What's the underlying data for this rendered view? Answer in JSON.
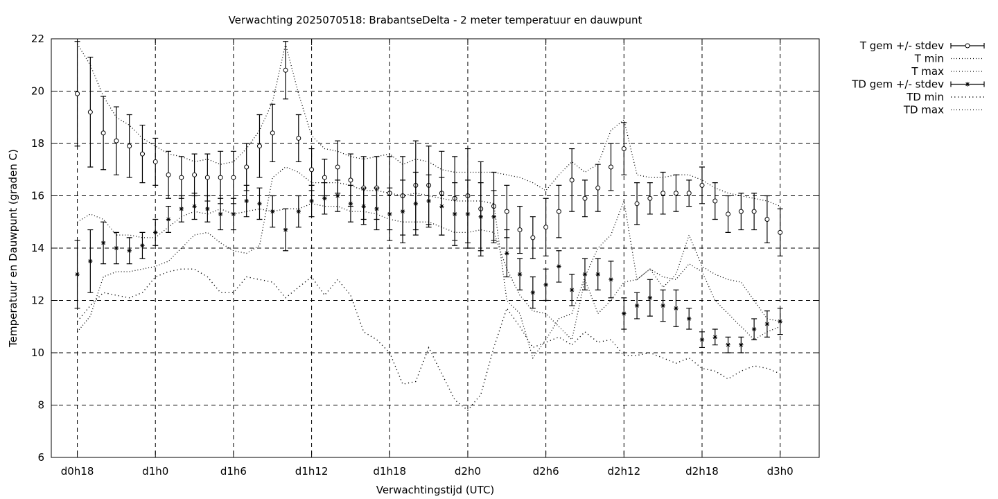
{
  "chart_data": {
    "type": "line",
    "title": "Verwachting 2025070518: BrabantseDelta - 2 meter temperatuur en dauwpunt",
    "xlabel": "Verwachtingstijd (UTC)",
    "ylabel": "Temperatuur en Dauwpunt (graden C)",
    "ylim": [
      6,
      22
    ],
    "yticks": [
      6,
      8,
      10,
      12,
      14,
      16,
      18,
      20,
      22
    ],
    "x_hours_range": [
      -2,
      57
    ],
    "xticks": [
      {
        "label": "d0h18",
        "hour": 0
      },
      {
        "label": "d1h0",
        "hour": 6
      },
      {
        "label": "d1h6",
        "hour": 12
      },
      {
        "label": "d1h12",
        "hour": 18
      },
      {
        "label": "d1h18",
        "hour": 24
      },
      {
        "label": "d2h0",
        "hour": 30
      },
      {
        "label": "d2h6",
        "hour": 36
      },
      {
        "label": "d2h12",
        "hour": 42
      },
      {
        "label": "d2h18",
        "hour": 48
      },
      {
        "label": "d3h0",
        "hour": 54
      }
    ],
    "grid": true,
    "legend_position": "outside-right",
    "x_hours": [
      0,
      1,
      2,
      3,
      4,
      5,
      6,
      7,
      8,
      9,
      10,
      11,
      12,
      13,
      14,
      15,
      16,
      17,
      18,
      19,
      20,
      21,
      22,
      23,
      24,
      25,
      26,
      27,
      28,
      29,
      30,
      31,
      32,
      33,
      34,
      35,
      36,
      37,
      38,
      39,
      40,
      41,
      42,
      43,
      44,
      45,
      46,
      47,
      48,
      49,
      50,
      51,
      52,
      53,
      54
    ],
    "series": [
      {
        "name": "T gem +/- stdev",
        "style": "errorbars-circle",
        "mean": [
          19.9,
          19.2,
          18.4,
          18.1,
          17.9,
          17.6,
          17.3,
          16.8,
          16.7,
          16.8,
          16.7,
          16.7,
          16.7,
          17.1,
          17.9,
          18.4,
          20.8,
          18.2,
          17.0,
          16.7,
          17.1,
          16.6,
          16.3,
          16.3,
          16.1,
          16.0,
          16.4,
          16.4,
          16.1,
          15.9,
          16.0,
          15.5,
          15.6,
          15.4,
          14.7,
          14.4,
          14.8,
          15.4,
          16.6,
          15.9,
          16.3,
          17.1,
          17.8,
          15.7,
          15.9,
          16.1,
          16.1,
          16.1,
          16.4,
          15.8,
          15.3,
          15.4,
          15.4,
          15.1,
          14.6
        ],
        "stdev": [
          2.0,
          2.1,
          1.4,
          1.3,
          1.2,
          1.1,
          0.9,
          0.9,
          0.8,
          0.8,
          0.9,
          1.0,
          1.0,
          0.9,
          1.2,
          1.1,
          1.1,
          0.9,
          0.8,
          0.7,
          1.0,
          1.0,
          1.2,
          1.2,
          1.4,
          1.5,
          1.7,
          1.5,
          1.6,
          1.6,
          1.8,
          1.8,
          1.3,
          1.0,
          0.9,
          0.8,
          1.1,
          1.0,
          1.2,
          0.7,
          0.9,
          0.9,
          1.0,
          0.8,
          0.6,
          0.8,
          0.7,
          0.5,
          0.7,
          0.7,
          0.7,
          0.7,
          0.7,
          0.9,
          0.9
        ]
      },
      {
        "name": "T min",
        "style": "dotted",
        "values": [
          15.0,
          15.3,
          15.1,
          14.5,
          14.5,
          14.4,
          14.4,
          14.8,
          15.2,
          15.4,
          15.3,
          15.5,
          15.3,
          15.4,
          15.5,
          15.4,
          15.5,
          15.5,
          15.7,
          15.6,
          15.6,
          15.4,
          15.4,
          15.3,
          15.1,
          15.0,
          15.0,
          15.0,
          14.8,
          14.6,
          14.6,
          14.7,
          14.6,
          13.2,
          12.2,
          11.6,
          11.5,
          11.0,
          10.5,
          12.8,
          11.5,
          12.0,
          12.7,
          12.8,
          13.2,
          12.5,
          13.0,
          14.5,
          13.3,
          13.0,
          12.8,
          12.7,
          12.0,
          11.3,
          11.2
        ]
      },
      {
        "name": "T max",
        "style": "dotted",
        "values": [
          21.8,
          21.0,
          19.8,
          19.0,
          18.7,
          18.2,
          17.9,
          17.6,
          17.5,
          17.3,
          17.4,
          17.2,
          17.3,
          17.8,
          18.5,
          19.6,
          21.8,
          19.9,
          18.3,
          17.8,
          17.7,
          17.5,
          17.4,
          17.5,
          17.6,
          17.2,
          17.4,
          17.3,
          17.0,
          16.9,
          16.9,
          16.9,
          16.9,
          16.8,
          16.7,
          16.5,
          16.2,
          16.8,
          17.3,
          16.9,
          17.2,
          18.5,
          18.9,
          16.8,
          16.7,
          16.7,
          16.8,
          16.8,
          16.6,
          16.3,
          16.1,
          16.0,
          15.9,
          15.8,
          15.6
        ]
      },
      {
        "name": "TD gem +/- stdev",
        "style": "errorbars-star",
        "mean": [
          13.0,
          13.5,
          14.2,
          14.0,
          13.9,
          14.1,
          14.6,
          15.1,
          15.5,
          15.6,
          15.5,
          15.3,
          15.3,
          15.8,
          15.7,
          15.4,
          14.7,
          15.4,
          15.8,
          15.9,
          16.0,
          15.7,
          15.6,
          15.5,
          15.3,
          15.4,
          15.7,
          15.8,
          15.6,
          15.3,
          15.3,
          15.2,
          15.2,
          13.8,
          13.0,
          12.3,
          12.6,
          13.3,
          12.4,
          13.0,
          13.0,
          12.8,
          11.5,
          11.8,
          12.1,
          11.8,
          11.7,
          11.3,
          10.5,
          10.6,
          10.3,
          10.3,
          10.9,
          11.1,
          11.2
        ],
        "stdev": [
          1.3,
          1.2,
          0.8,
          0.6,
          0.5,
          0.5,
          0.5,
          0.5,
          0.5,
          0.5,
          0.5,
          0.6,
          0.6,
          0.6,
          0.6,
          0.6,
          0.8,
          0.6,
          0.6,
          0.6,
          0.6,
          0.7,
          0.7,
          0.8,
          1.0,
          1.2,
          1.2,
          1.0,
          1.1,
          1.2,
          1.3,
          1.3,
          1.0,
          0.9,
          0.6,
          0.6,
          0.6,
          0.6,
          0.6,
          0.6,
          0.6,
          0.7,
          0.6,
          0.5,
          0.7,
          0.6,
          0.7,
          0.4,
          0.3,
          0.3,
          0.3,
          0.3,
          0.4,
          0.5,
          0.5
        ]
      },
      {
        "name": "TD min",
        "style": "dotted-sparse",
        "values": [
          11.2,
          11.8,
          12.3,
          12.2,
          12.1,
          12.3,
          12.9,
          13.1,
          13.2,
          13.2,
          12.9,
          12.3,
          12.3,
          12.9,
          12.8,
          12.7,
          12.1,
          12.5,
          12.9,
          12.2,
          12.8,
          12.2,
          10.8,
          10.5,
          10.0,
          8.8,
          8.9,
          10.2,
          9.2,
          8.2,
          7.8,
          8.4,
          10.2,
          11.7,
          11.0,
          10.2,
          10.4,
          10.6,
          10.3,
          10.8,
          10.4,
          10.5,
          9.9,
          9.9,
          10.0,
          9.8,
          9.6,
          9.8,
          9.4,
          9.3,
          9.0,
          9.3,
          9.5,
          9.4,
          9.2
        ]
      },
      {
        "name": "TD max",
        "style": "dotted",
        "values": [
          10.8,
          11.4,
          12.9,
          13.1,
          13.1,
          13.2,
          13.3,
          13.5,
          14.0,
          14.5,
          14.6,
          14.2,
          13.9,
          13.8,
          14.1,
          16.7,
          17.1,
          16.9,
          16.5,
          16.5,
          16.5,
          16.4,
          16.2,
          16.2,
          16.1,
          16.0,
          16.1,
          16.0,
          15.9,
          15.8,
          15.8,
          15.8,
          15.7,
          12.0,
          11.5,
          9.8,
          10.5,
          11.3,
          11.5,
          12.9,
          14.0,
          14.5,
          15.8,
          12.8,
          13.2,
          12.9,
          12.8,
          13.4,
          13.1,
          12.0,
          11.5,
          11.0,
          10.5,
          10.8,
          11.0
        ]
      }
    ]
  }
}
